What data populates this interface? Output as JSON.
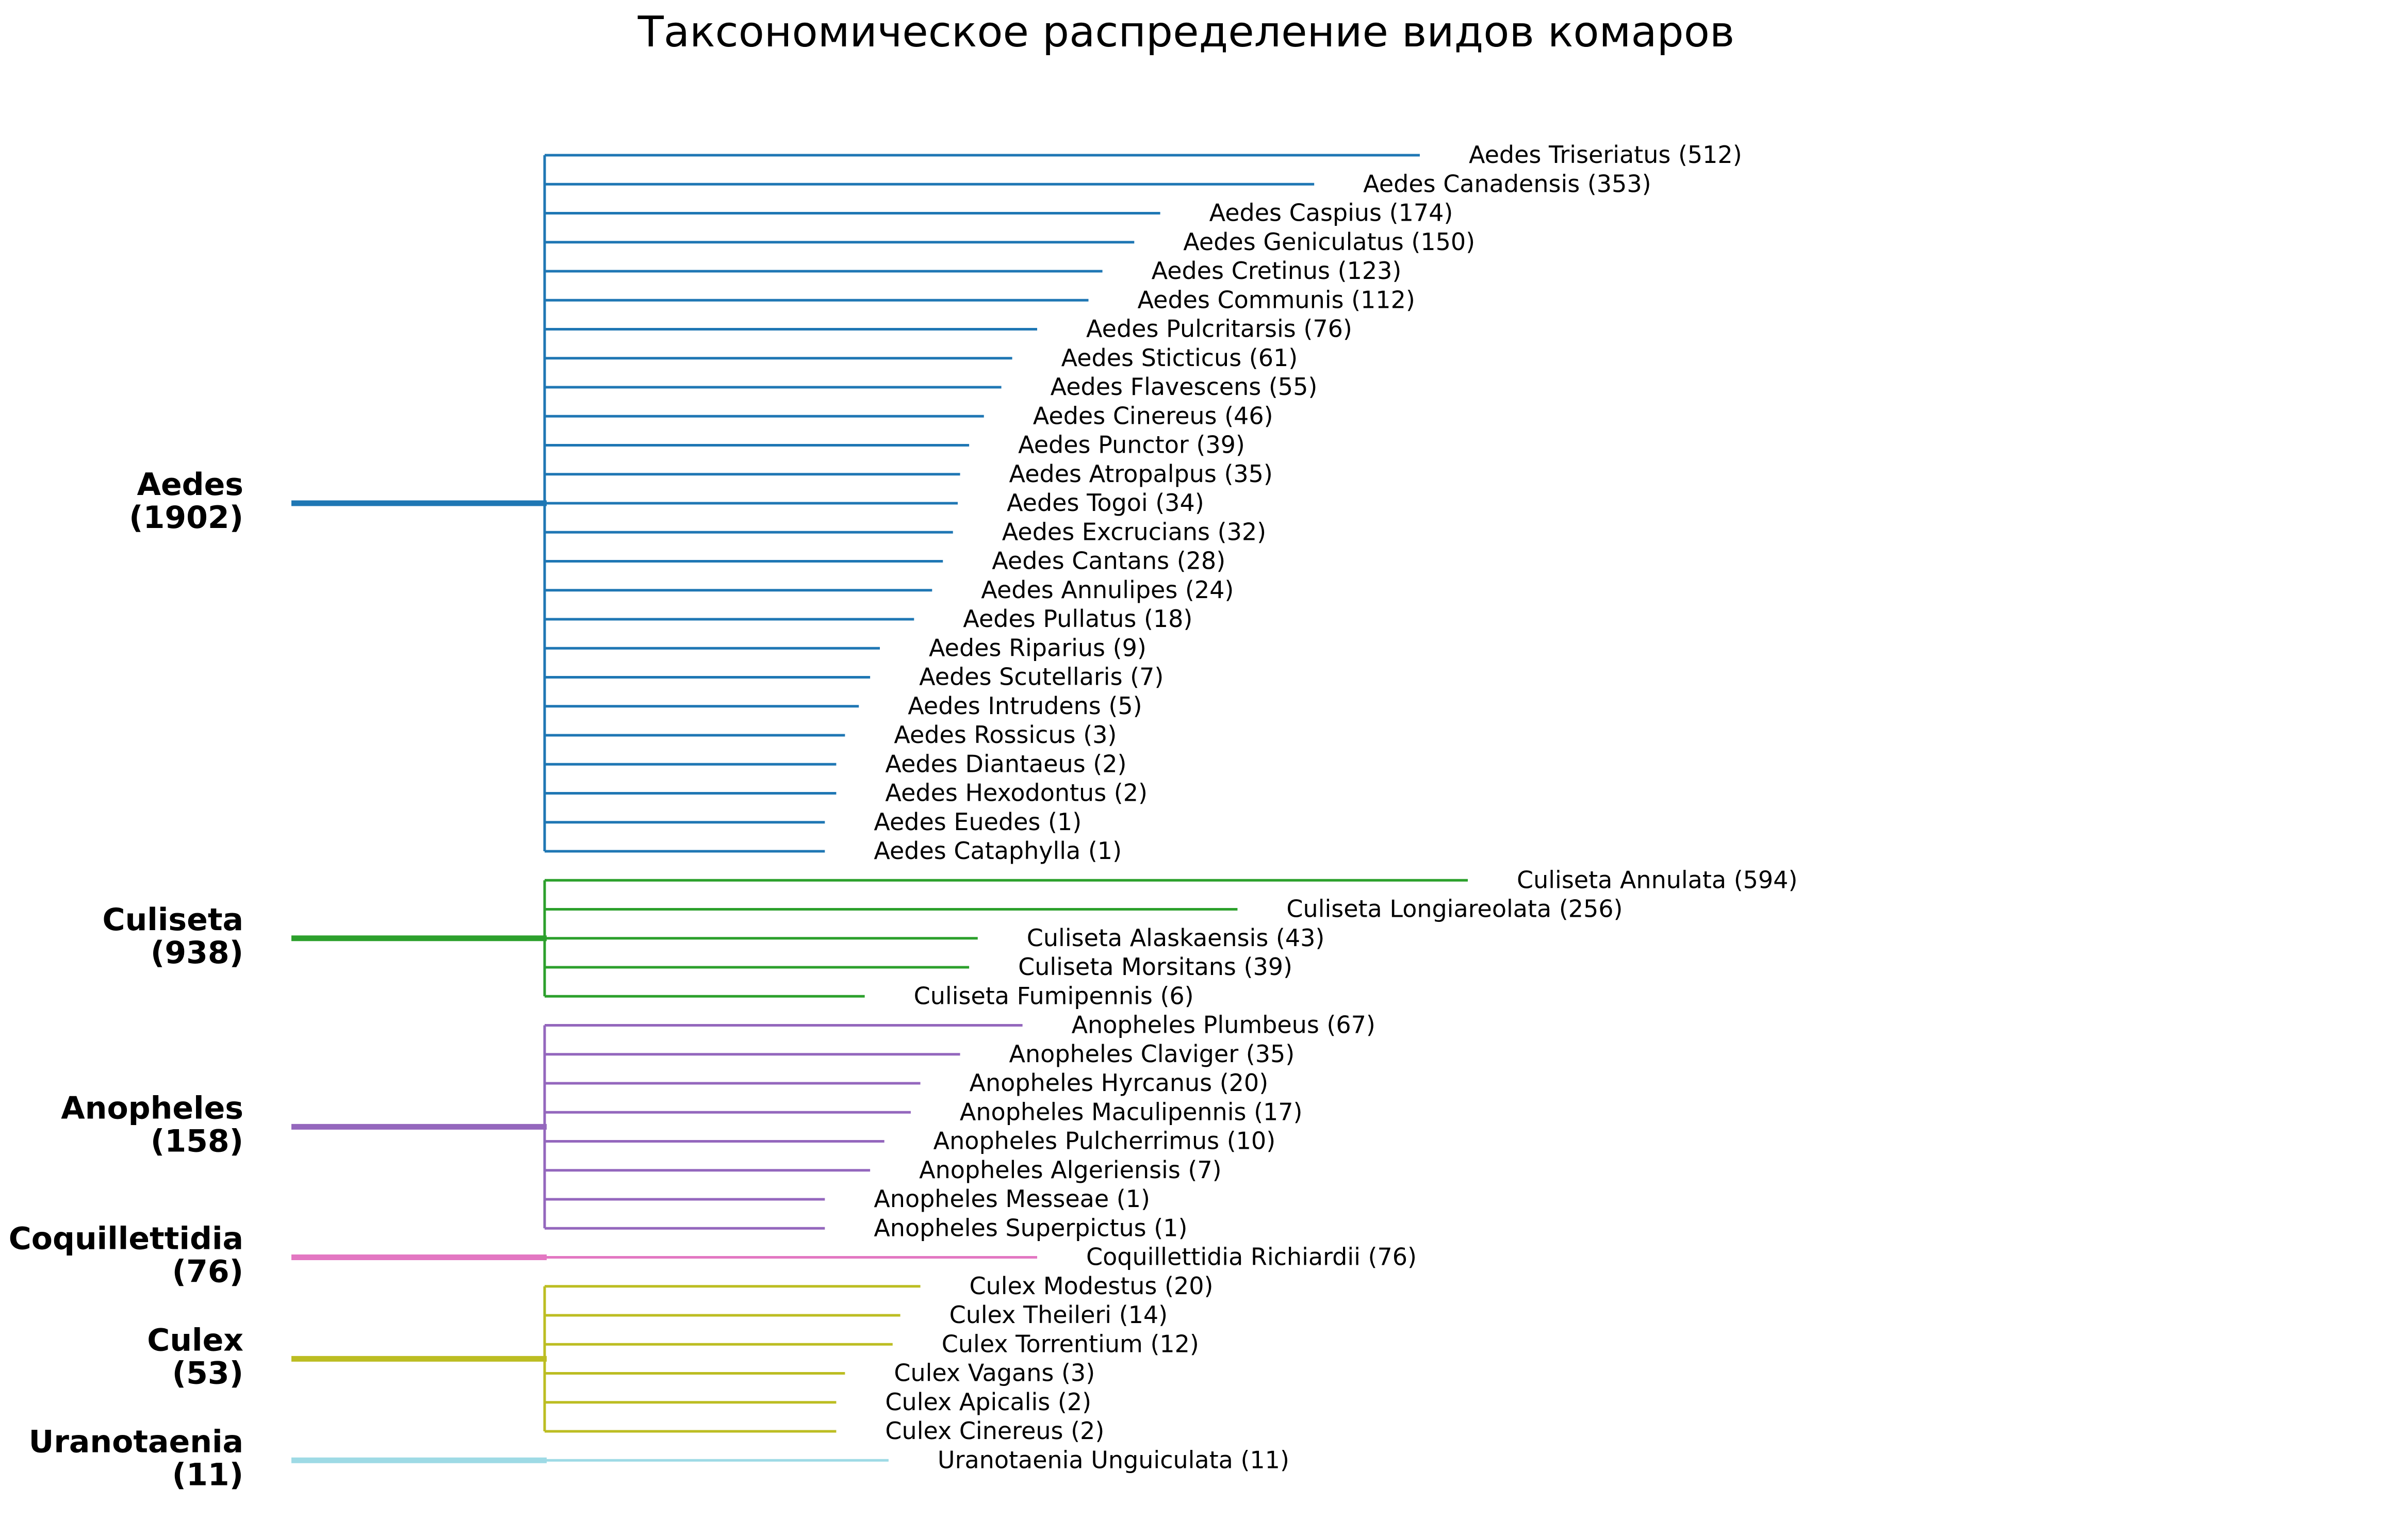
{
  "chart_data": {
    "type": "dendrogram",
    "title": "Таксономическое распределение видов комаров",
    "genera": [
      {
        "label": "Aedes",
        "total": "(1902)",
        "color": "#1f77b4",
        "species": [
          {
            "label": "Aedes Triseriatus (512)",
            "value": 512
          },
          {
            "label": "Aedes Canadensis (353)",
            "value": 353
          },
          {
            "label": "Aedes Caspius (174)",
            "value": 174
          },
          {
            "label": "Aedes Geniculatus (150)",
            "value": 150
          },
          {
            "label": "Aedes Cretinus (123)",
            "value": 123
          },
          {
            "label": "Aedes Communis (112)",
            "value": 112
          },
          {
            "label": "Aedes Pulcritarsis (76)",
            "value": 76
          },
          {
            "label": "Aedes Sticticus (61)",
            "value": 61
          },
          {
            "label": "Aedes Flavescens (55)",
            "value": 55
          },
          {
            "label": "Aedes Cinereus (46)",
            "value": 46
          },
          {
            "label": "Aedes Punctor (39)",
            "value": 39
          },
          {
            "label": "Aedes Atropalpus (35)",
            "value": 35
          },
          {
            "label": "Aedes Togoi (34)",
            "value": 34
          },
          {
            "label": "Aedes Excrucians (32)",
            "value": 32
          },
          {
            "label": "Aedes Cantans (28)",
            "value": 28
          },
          {
            "label": "Aedes Annulipes (24)",
            "value": 24
          },
          {
            "label": "Aedes Pullatus (18)",
            "value": 18
          },
          {
            "label": "Aedes Riparius (9)",
            "value": 9
          },
          {
            "label": "Aedes Scutellaris (7)",
            "value": 7
          },
          {
            "label": "Aedes Intrudens (5)",
            "value": 5
          },
          {
            "label": "Aedes Rossicus (3)",
            "value": 3
          },
          {
            "label": "Aedes Diantaeus (2)",
            "value": 2
          },
          {
            "label": "Aedes Hexodontus (2)",
            "value": 2
          },
          {
            "label": "Aedes Euedes (1)",
            "value": 1
          },
          {
            "label": "Aedes Cataphylla (1)",
            "value": 1
          }
        ]
      },
      {
        "label": "Culiseta",
        "total": "(938)",
        "color": "#2ca02c",
        "species": [
          {
            "label": "Culiseta Annulata (594)",
            "value": 594
          },
          {
            "label": "Culiseta Longiareolata (256)",
            "value": 256
          },
          {
            "label": "Culiseta Alaskaensis (43)",
            "value": 43
          },
          {
            "label": "Culiseta Morsitans (39)",
            "value": 39
          },
          {
            "label": "Culiseta Fumipennis (6)",
            "value": 6
          }
        ]
      },
      {
        "label": "Anopheles",
        "total": "(158)",
        "color": "#9467bd",
        "species": [
          {
            "label": "Anopheles Plumbeus (67)",
            "value": 67
          },
          {
            "label": "Anopheles Claviger (35)",
            "value": 35
          },
          {
            "label": "Anopheles Hyrcanus (20)",
            "value": 20
          },
          {
            "label": "Anopheles Maculipennis (17)",
            "value": 17
          },
          {
            "label": "Anopheles Pulcherrimus (10)",
            "value": 10
          },
          {
            "label": "Anopheles Algeriensis (7)",
            "value": 7
          },
          {
            "label": "Anopheles Messeae (1)",
            "value": 1
          },
          {
            "label": "Anopheles Superpictus (1)",
            "value": 1
          }
        ]
      },
      {
        "label": "Coquillettidia",
        "total": "(76)",
        "color": "#e377c2",
        "species": [
          {
            "label": "Coquillettidia Richiardii (76)",
            "value": 76
          }
        ]
      },
      {
        "label": "Culex",
        "total": "(53)",
        "color": "#bcbd22",
        "species": [
          {
            "label": "Culex Modestus (20)",
            "value": 20
          },
          {
            "label": "Culex Theileri (14)",
            "value": 14
          },
          {
            "label": "Culex Torrentium (12)",
            "value": 12
          },
          {
            "label": "Culex Vagans (3)",
            "value": 3
          },
          {
            "label": "Culex Apicalis (2)",
            "value": 2
          },
          {
            "label": "Culex Cinereus (2)",
            "value": 2
          }
        ]
      },
      {
        "label": "Uranotaenia",
        "total": "(11)",
        "color": "#9edae5",
        "species": [
          {
            "label": "Uranotaenia Unguiculata (11)",
            "value": 11
          }
        ]
      }
    ]
  }
}
